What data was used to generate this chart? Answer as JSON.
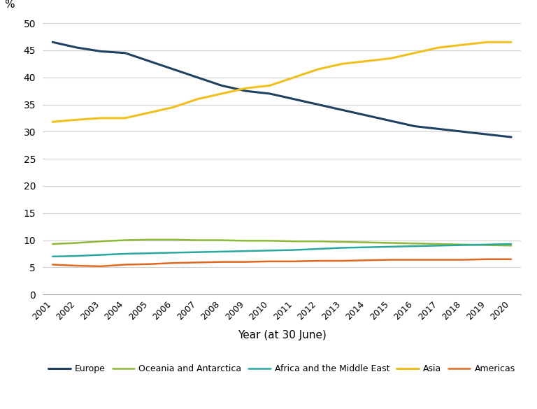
{
  "years": [
    2001,
    2002,
    2003,
    2004,
    2005,
    2006,
    2007,
    2008,
    2009,
    2010,
    2011,
    2012,
    2013,
    2014,
    2015,
    2016,
    2017,
    2018,
    2019,
    2020
  ],
  "series": {
    "Europe": [
      46.5,
      45.5,
      44.8,
      44.5,
      43.0,
      41.5,
      40.0,
      38.5,
      37.5,
      37.0,
      36.0,
      35.0,
      34.0,
      33.0,
      32.0,
      31.0,
      30.5,
      30.0,
      29.5,
      29.0
    ],
    "Oceania and Antarctica": [
      9.3,
      9.5,
      9.8,
      10.0,
      10.1,
      10.1,
      10.0,
      10.0,
      9.9,
      9.9,
      9.8,
      9.8,
      9.7,
      9.6,
      9.5,
      9.4,
      9.3,
      9.2,
      9.1,
      9.0
    ],
    "Africa and the Middle East": [
      7.0,
      7.1,
      7.3,
      7.5,
      7.6,
      7.7,
      7.8,
      7.9,
      8.0,
      8.1,
      8.2,
      8.4,
      8.6,
      8.7,
      8.8,
      8.9,
      9.0,
      9.1,
      9.2,
      9.3
    ],
    "Asia": [
      31.8,
      32.2,
      32.5,
      32.5,
      33.5,
      34.5,
      36.0,
      37.0,
      38.0,
      38.5,
      40.0,
      41.5,
      42.5,
      43.0,
      43.5,
      44.5,
      45.5,
      46.0,
      46.5,
      46.5
    ],
    "Americas": [
      5.5,
      5.3,
      5.2,
      5.5,
      5.6,
      5.8,
      5.9,
      6.0,
      6.0,
      6.1,
      6.1,
      6.2,
      6.2,
      6.3,
      6.4,
      6.4,
      6.4,
      6.4,
      6.5,
      6.5
    ]
  },
  "colors": {
    "Europe": "#1f4060",
    "Oceania and Antarctica": "#8db83a",
    "Africa and the Middle East": "#2aa8a0",
    "Asia": "#f0c020",
    "Americas": "#e06820"
  },
  "line_widths": {
    "Europe": 2.2,
    "Oceania and Antarctica": 1.8,
    "Africa and the Middle East": 1.8,
    "Asia": 2.2,
    "Americas": 1.8
  },
  "ylabel": "%",
  "xlabel": "Year (at 30 June)",
  "yticks": [
    0,
    5,
    10,
    15,
    20,
    25,
    30,
    35,
    40,
    45,
    50
  ],
  "ylim": [
    0,
    52
  ],
  "xlim": [
    2001,
    2020
  ],
  "background_color": "#ffffff",
  "grid_color": "#d0d0d0",
  "legend_order": [
    "Europe",
    "Oceania and Antarctica",
    "Africa and the Middle East",
    "Asia",
    "Americas"
  ]
}
